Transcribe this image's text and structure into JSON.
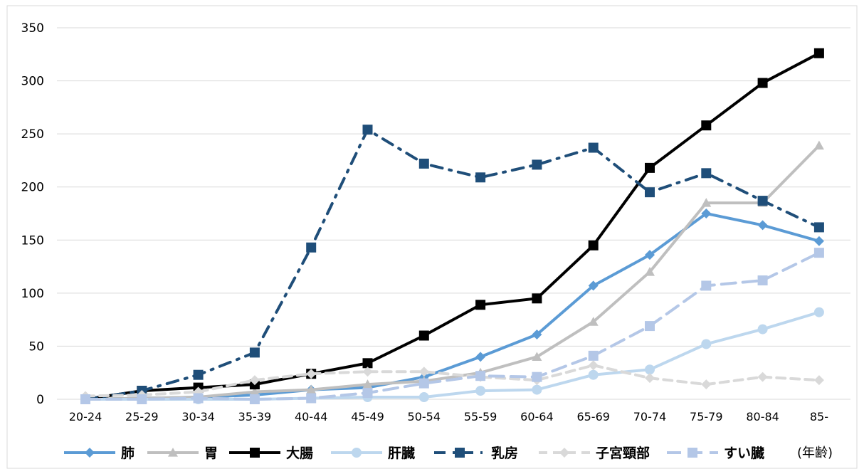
{
  "chart_data": {
    "type": "line",
    "categories": [
      "20-24",
      "25-29",
      "30-34",
      "35-39",
      "40-44",
      "45-49",
      "50-54",
      "55-59",
      "60-64",
      "65-69",
      "70-74",
      "75-79",
      "80-84",
      "85-"
    ],
    "ylim": [
      0,
      350
    ],
    "yticks": [
      0,
      50,
      100,
      150,
      200,
      250,
      300,
      350
    ],
    "grid": true,
    "legend_position": "bottom",
    "x_unit_label": "(年齢)",
    "series": [
      {
        "name": "肺",
        "color": "#5b9bd5",
        "dash": "solid",
        "marker": "diamond",
        "values": [
          0,
          1,
          2,
          4,
          9,
          11,
          21,
          40,
          61,
          107,
          136,
          175,
          164,
          149
        ]
      },
      {
        "name": "胃",
        "color": "#bfbfbf",
        "dash": "solid",
        "marker": "triangle",
        "values": [
          0,
          1,
          2,
          7,
          9,
          14,
          17,
          25,
          40,
          73,
          120,
          185,
          185,
          239
        ]
      },
      {
        "name": "大腸",
        "color": "#000000",
        "dash": "solid",
        "marker": "square",
        "values": [
          0,
          8,
          11,
          14,
          24,
          34,
          60,
          89,
          95,
          145,
          218,
          258,
          298,
          326
        ]
      },
      {
        "name": "肝臓",
        "color": "#bdd7ee",
        "dash": "solid",
        "marker": "circle",
        "values": [
          0,
          0,
          0,
          0,
          1,
          2,
          2,
          8,
          9,
          23,
          28,
          52,
          66,
          82
        ]
      },
      {
        "name": "乳房",
        "color": "#1f4e79",
        "dash": "dashdot",
        "marker": "square",
        "values": [
          0,
          8,
          23,
          44,
          143,
          254,
          222,
          209,
          221,
          237,
          195,
          213,
          187,
          162
        ]
      },
      {
        "name": "子宮頸部",
        "color": "#d9d9d9",
        "dash": "dash",
        "marker": "diamond",
        "values": [
          3,
          4,
          7,
          18,
          24,
          26,
          26,
          21,
          18,
          32,
          20,
          14,
          21,
          18
        ]
      },
      {
        "name": "すい臓",
        "color": "#b4c7e7",
        "dash": "longdash",
        "marker": "square",
        "values": [
          0,
          0,
          1,
          0,
          1,
          6,
          15,
          22,
          21,
          41,
          69,
          107,
          112,
          138
        ]
      }
    ]
  }
}
